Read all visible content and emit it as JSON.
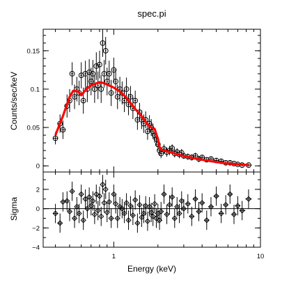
{
  "chart_data": {
    "type": "scatter",
    "title": "spec.pi",
    "xlabel": "Energy (keV)",
    "xscale": "log",
    "xlim": [
      0.33,
      10
    ],
    "x_ticks": [
      {
        "value": 1,
        "label": "1"
      },
      {
        "value": 10,
        "label": "10"
      }
    ],
    "colors": {
      "model": "#ff0000",
      "data": "#000000",
      "frame": "#000000"
    },
    "grid": false,
    "legend": "none",
    "panels": [
      {
        "id": "spectrum",
        "ylabel": "Counts/sec/keV",
        "ylim": [
          -0.008,
          0.178
        ],
        "y_ticks": [
          {
            "value": 0,
            "label": "0"
          },
          {
            "value": 0.05,
            "label": "0.05"
          },
          {
            "value": 0.1,
            "label": "0.1"
          },
          {
            "value": 0.15,
            "label": "0.15"
          }
        ],
        "series": [
          {
            "kind": "data points with error bars (circles)",
            "x": [
              0.4,
              0.43,
              0.45,
              0.48,
              0.5,
              0.52,
              0.54,
              0.56,
              0.58,
              0.6,
              0.62,
              0.64,
              0.66,
              0.68,
              0.7,
              0.72,
              0.74,
              0.76,
              0.78,
              0.8,
              0.82,
              0.84,
              0.86,
              0.88,
              0.9,
              0.93,
              0.96,
              1.0,
              1.03,
              1.06,
              1.1,
              1.14,
              1.18,
              1.22,
              1.26,
              1.3,
              1.35,
              1.4,
              1.45,
              1.5,
              1.55,
              1.6,
              1.65,
              1.7,
              1.75,
              1.8,
              1.85,
              1.9,
              1.95,
              2.0,
              2.05,
              2.1,
              2.2,
              2.3,
              2.4,
              2.5,
              2.6,
              2.7,
              2.8,
              2.9,
              3.0,
              3.2,
              3.4,
              3.6,
              3.8,
              4.0,
              4.3,
              4.6,
              5.0,
              5.4,
              5.8,
              6.2,
              6.6,
              7.0,
              7.5,
              8.3
            ],
            "y": [
              0.036,
              0.055,
              0.047,
              0.078,
              0.085,
              0.12,
              0.09,
              0.1,
              0.095,
              0.118,
              0.085,
              0.12,
              0.1,
              0.122,
              0.11,
              0.12,
              0.1,
              0.13,
              0.105,
              0.132,
              0.1,
              0.16,
              0.12,
              0.15,
              0.11,
              0.12,
              0.095,
              0.125,
              0.11,
              0.09,
              0.1,
              0.095,
              0.085,
              0.1,
              0.08,
              0.09,
              0.075,
              0.085,
              0.06,
              0.07,
              0.06,
              0.055,
              0.06,
              0.045,
              0.055,
              0.05,
              0.045,
              0.04,
              0.035,
              0.028,
              0.02,
              0.016,
              0.022,
              0.018,
              0.02,
              0.023,
              0.016,
              0.018,
              0.015,
              0.017,
              0.013,
              0.012,
              0.011,
              0.013,
              0.009,
              0.011,
              0.008,
              0.009,
              0.007,
              0.006,
              0.004,
              0.004,
              0.003,
              0.002,
              0.001,
              0.001
            ],
            "yerr": [
              0.008,
              0.012,
              0.012,
              0.015,
              0.015,
              0.015,
              0.016,
              0.016,
              0.016,
              0.017,
              0.017,
              0.017,
              0.017,
              0.017,
              0.018,
              0.018,
              0.018,
              0.018,
              0.018,
              0.018,
              0.018,
              0.018,
              0.018,
              0.018,
              0.018,
              0.017,
              0.017,
              0.016,
              0.016,
              0.016,
              0.016,
              0.015,
              0.015,
              0.015,
              0.014,
              0.014,
              0.014,
              0.013,
              0.013,
              0.012,
              0.012,
              0.012,
              0.011,
              0.011,
              0.011,
              0.011,
              0.01,
              0.01,
              0.01,
              0.008,
              0.007,
              0.006,
              0.006,
              0.006,
              0.006,
              0.005,
              0.005,
              0.005,
              0.005,
              0.005,
              0.004,
              0.004,
              0.004,
              0.004,
              0.004,
              0.003,
              0.003,
              0.003,
              0.003,
              0.003,
              0.003,
              0.003,
              0.002,
              0.002,
              0.002,
              0.002
            ]
          },
          {
            "kind": "model (red line)",
            "x": [
              0.4,
              0.45,
              0.5,
              0.53,
              0.57,
              0.6,
              0.65,
              0.7,
              0.75,
              0.8,
              0.85,
              0.9,
              0.95,
              1.0,
              1.1,
              1.2,
              1.3,
              1.4,
              1.5,
              1.6,
              1.7,
              1.8,
              1.9,
              2.0,
              2.05,
              2.1,
              2.3,
              2.6,
              3.0,
              3.5,
              4.0,
              5.0,
              6.0,
              7.0,
              8.3
            ],
            "y": [
              0.04,
              0.065,
              0.09,
              0.098,
              0.097,
              0.092,
              0.1,
              0.105,
              0.107,
              0.109,
              0.108,
              0.106,
              0.104,
              0.102,
              0.097,
              0.09,
              0.082,
              0.074,
              0.068,
              0.061,
              0.054,
              0.05,
              0.048,
              0.035,
              0.025,
              0.021,
              0.019,
              0.016,
              0.013,
              0.01,
              0.008,
              0.005,
              0.003,
              0.002,
              0.001
            ]
          }
        ]
      },
      {
        "id": "residuals",
        "ylabel": "Sigma",
        "ylim": [
          -4,
          3.8
        ],
        "y_ticks": [
          {
            "value": -4,
            "label": "−4"
          },
          {
            "value": -2,
            "label": "−2"
          },
          {
            "value": 0,
            "label": "0"
          },
          {
            "value": 2,
            "label": "2"
          }
        ],
        "zero_line": true,
        "series": [
          {
            "kind": "residuals with error bars (diamonds)",
            "x": [
              0.4,
              0.43,
              0.45,
              0.48,
              0.5,
              0.52,
              0.54,
              0.56,
              0.58,
              0.6,
              0.62,
              0.64,
              0.66,
              0.68,
              0.7,
              0.72,
              0.74,
              0.76,
              0.78,
              0.8,
              0.82,
              0.84,
              0.86,
              0.88,
              0.9,
              0.93,
              0.96,
              1.0,
              1.03,
              1.06,
              1.1,
              1.14,
              1.18,
              1.22,
              1.26,
              1.3,
              1.35,
              1.4,
              1.45,
              1.5,
              1.55,
              1.6,
              1.65,
              1.7,
              1.75,
              1.8,
              1.85,
              1.9,
              1.95,
              2.0,
              2.05,
              2.1,
              2.2,
              2.3,
              2.4,
              2.5,
              2.6,
              2.7,
              2.8,
              2.9,
              3.0,
              3.2,
              3.4,
              3.6,
              3.8,
              4.0,
              4.3,
              4.6,
              5.0,
              5.4,
              5.8,
              6.2,
              6.6,
              7.0,
              7.5,
              8.3
            ],
            "y": [
              -0.5,
              -1.5,
              0.7,
              0.8,
              -0.3,
              1.8,
              -1.0,
              0.2,
              -0.5,
              1.5,
              -1.2,
              1.0,
              0.0,
              1.2,
              0.3,
              0.8,
              -0.6,
              1.5,
              -0.2,
              1.3,
              -0.8,
              2.5,
              0.6,
              2.0,
              -0.4,
              0.7,
              -1.0,
              1.5,
              0.5,
              -1.0,
              0.2,
              0.0,
              -0.5,
              0.6,
              -1.2,
              0.3,
              -0.7,
              0.9,
              -1.5,
              0.4,
              -0.9,
              -0.5,
              0.3,
              -1.3,
              0.2,
              -0.4,
              -0.8,
              0.5,
              -1.0,
              -0.5,
              -1.2,
              -0.3,
              1.5,
              -0.6,
              0.4,
              1.2,
              -1.0,
              0.2,
              -0.5,
              0.8,
              0.0,
              0.5,
              -0.8,
              1.0,
              -0.3,
              0.6,
              -1.2,
              0.2,
              1.3,
              -0.5,
              0.4,
              1.5,
              -0.6,
              0.3,
              -0.2,
              1.0
            ],
            "yerr": [
              1,
              1,
              1,
              1,
              1,
              1,
              1,
              1,
              1,
              1,
              1,
              1,
              1,
              1,
              1,
              1,
              1,
              1,
              1,
              1,
              1,
              1,
              1,
              1,
              1,
              1,
              1,
              1,
              1,
              1,
              1,
              1,
              1,
              1,
              1,
              1,
              1,
              1,
              1,
              1,
              1,
              1,
              1,
              1,
              1,
              1,
              1,
              1,
              1,
              1,
              1,
              1,
              1,
              1,
              1,
              1,
              1,
              1,
              1,
              1,
              1,
              1,
              1,
              1,
              1,
              1,
              1,
              1,
              1,
              1,
              1,
              1,
              1,
              1,
              1,
              1
            ]
          }
        ]
      }
    ]
  }
}
